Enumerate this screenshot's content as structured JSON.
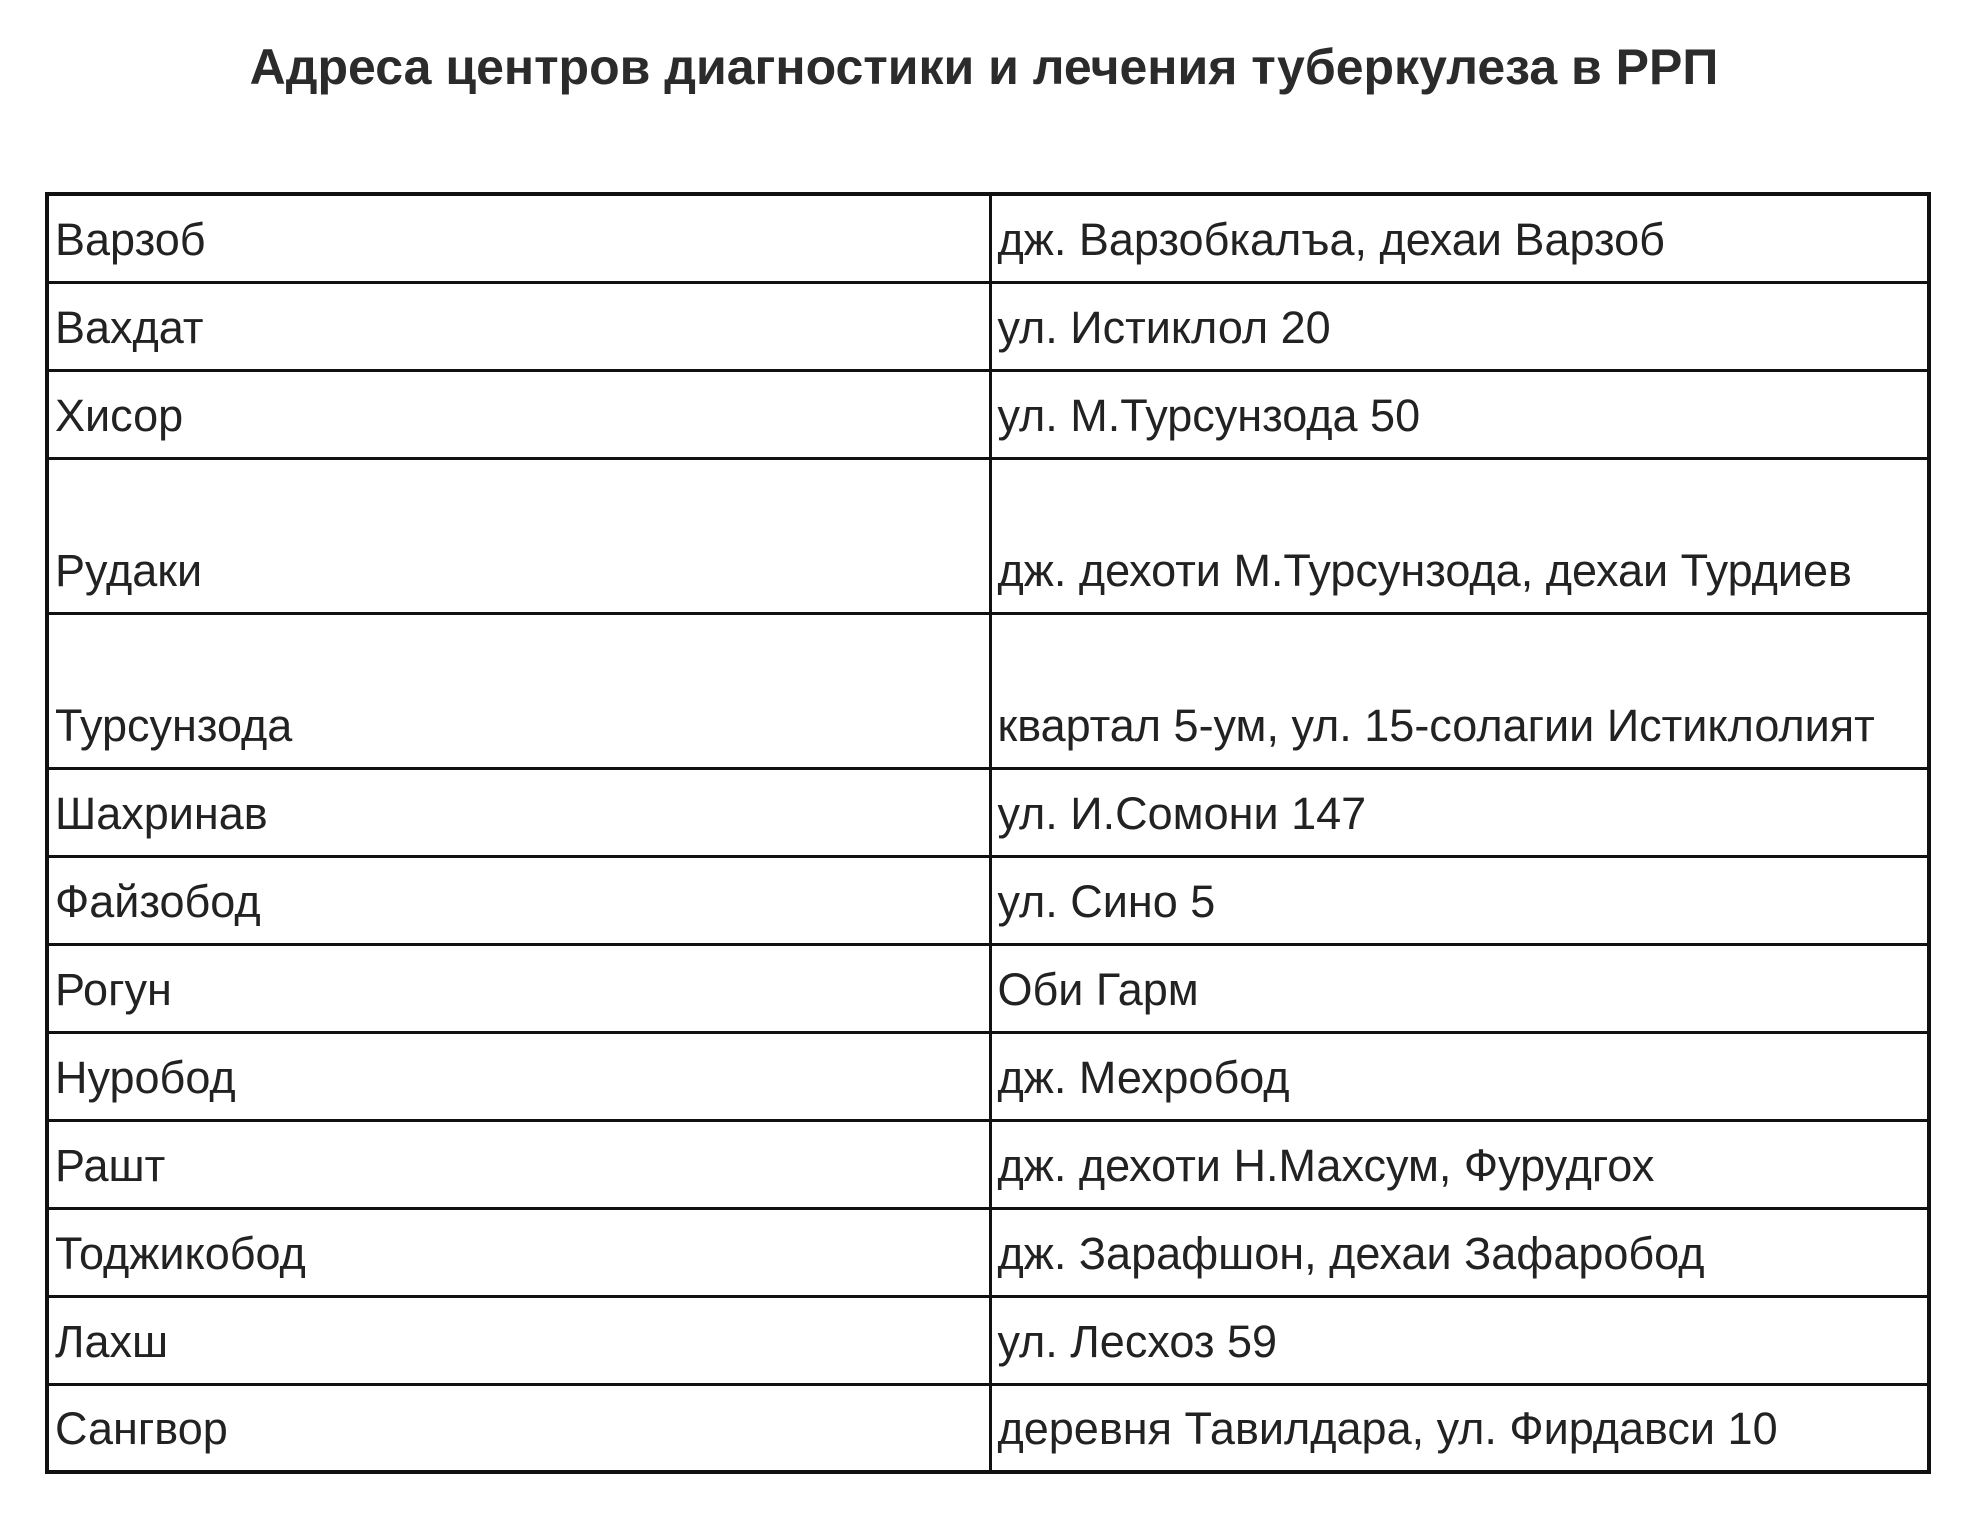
{
  "title": "Адреса центров диагностики и лечения туберкулеза в РРП",
  "rows": [
    {
      "district": "Варзоб",
      "address": "дж. Варзобкалъа, дехаи Варзоб"
    },
    {
      "district": "Вахдат",
      "address": "ул. Истиклол 20"
    },
    {
      "district": "Хисор",
      "address": "ул. М.Турсунзода 50"
    },
    {
      "district": "Рудаки",
      "address": "дж. дехоти М.Турсунзода, дехаи Турдиев"
    },
    {
      "district": "Турсунзода",
      "address": "квартал 5-ум, ул. 15-солагии Истиклолият"
    },
    {
      "district": "Шахринав",
      "address": "ул. И.Сомони 147"
    },
    {
      "district": "Файзобод",
      "address": "ул. Сино 5"
    },
    {
      "district": "Рогун",
      "address": "Оби Гарм"
    },
    {
      "district": "Нуробод",
      "address": "дж. Мехробод"
    },
    {
      "district": "Рашт",
      "address": "дж. дехоти Н.Махсум, Фурудгох"
    },
    {
      "district": "Тоджикобод",
      "address": "дж. Зарафшон, дехаи Зафаробод"
    },
    {
      "district": "Лахш",
      "address": "ул. Лесхоз 59"
    },
    {
      "district": "Сангвор",
      "address": "деревня Тавилдара, ул. Фирдавси 10"
    }
  ]
}
